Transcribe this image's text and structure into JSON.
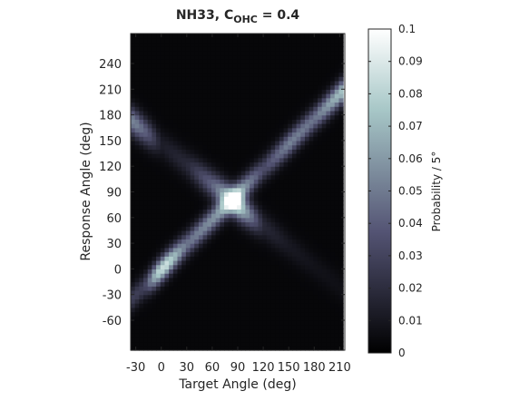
{
  "chart_data": {
    "type": "heatmap",
    "title_main": "NH33, C",
    "title_sub": "OHC",
    "title_suffix": " = 0.4",
    "xlabel": "Target Angle (deg)",
    "ylabel": "Response Angle (deg)",
    "colorbar_label": "Probability / 5°",
    "xlim": [
      -36,
      216
    ],
    "ylim": [
      -95,
      275
    ],
    "x_ticks": [
      -30,
      0,
      30,
      60,
      90,
      120,
      150,
      180,
      210
    ],
    "y_ticks": [
      -60,
      -30,
      0,
      30,
      60,
      90,
      120,
      150,
      180,
      210,
      240
    ],
    "clim": [
      0,
      0.1
    ],
    "colorbar_ticks": [
      0,
      0.01,
      0.02,
      0.03,
      0.04,
      0.05,
      0.06,
      0.07,
      0.08,
      0.09,
      0.1
    ],
    "colormap": "bone",
    "grid": false,
    "x_step_deg": 5,
    "y_step_deg": 5,
    "background_level": 0.003,
    "features": [
      {
        "name": "diagonal-ridge",
        "from": [
          -20,
          -20
        ],
        "to": [
          210,
          205
        ],
        "width_deg": 14,
        "peaks": [
          [
            -20,
            0.025
          ],
          [
            -5,
            0.075
          ],
          [
            5,
            0.085
          ],
          [
            15,
            0.07
          ],
          [
            30,
            0.045
          ],
          [
            45,
            0.05
          ],
          [
            60,
            0.055
          ],
          [
            90,
            0.065
          ],
          [
            120,
            0.03
          ],
          [
            150,
            0.05
          ],
          [
            180,
            0.045
          ],
          [
            210,
            0.07
          ]
        ]
      },
      {
        "name": "anti-diagonal-ridge",
        "from": [
          -30,
          170
        ],
        "to": [
          210,
          -20
        ],
        "width_deg": 16,
        "peaks": [
          [
            -30,
            0.05
          ],
          [
            -15,
            0.035
          ],
          [
            0,
            0.01
          ],
          [
            30,
            0.015
          ],
          [
            60,
            0.04
          ],
          [
            90,
            0.08
          ],
          [
            120,
            0.015
          ],
          [
            150,
            0.008
          ],
          [
            180,
            0.005
          ],
          [
            210,
            0.004
          ]
        ]
      }
    ]
  }
}
